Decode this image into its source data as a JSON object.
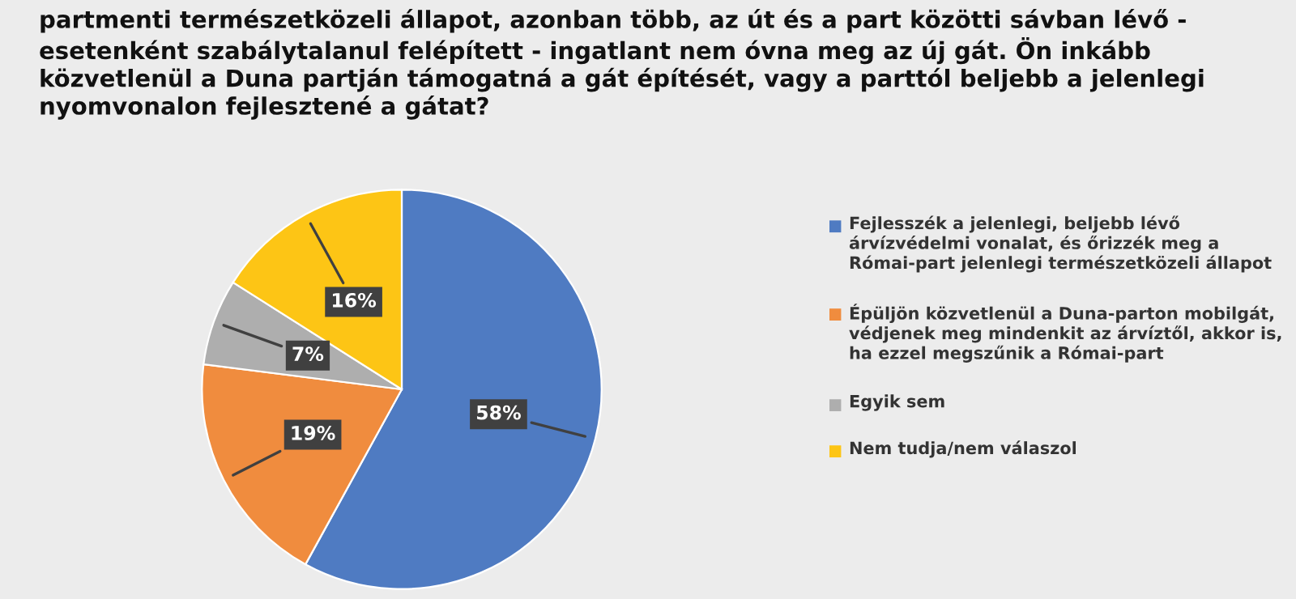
{
  "chart_data": {
    "type": "pie",
    "title": "partmenti természetközeli állapot, azonban több, az út és a part közötti sávban lévő - esetenként szabálytalanul felépített - ingatlant nem óvna meg az új gát. Ön inkább közvetlenül a Duna partján támogatná a gát építését, vagy a parttól beljebb a jelenlegi nyomvonalon fejlesztené a gátat?",
    "categories": [
      "Fejlesszék a jelenlegi, beljebb lévő árvízvédelmi vonalat, és őrizzék meg a Római-part jelenlegi természetközeli állapot",
      "Épüljön közvetlenül a Duna-parton mobilgát, védjenek meg mindenkit az árvíztől, akkor is, ha ezzel megszűnik a Római-part",
      "Egyik sem",
      "Nem tudja/nem válaszol"
    ],
    "values": [
      58,
      19,
      7,
      16
    ],
    "colors": [
      "#4f7bc2",
      "#f08c3e",
      "#aeaeae",
      "#fdc515"
    ],
    "value_labels": [
      "58%",
      "19%",
      "7%",
      "16%"
    ],
    "legend": "right"
  }
}
